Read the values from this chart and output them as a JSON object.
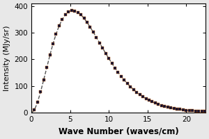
{
  "title": "",
  "xlabel": "Wave Number (waves/cm)",
  "ylabel": "Intensity (MJy/sr)",
  "xlim": [
    0,
    22.5
  ],
  "ylim": [
    0,
    410
  ],
  "xticks": [
    0,
    5,
    10,
    15,
    20
  ],
  "yticks": [
    0,
    100,
    200,
    300,
    400
  ],
  "T_cmb": 2.725,
  "figure_bg_color": "#e8e8e8",
  "axes_bg_color": "#ffffff",
  "curve_color": "#555555",
  "dot_color": "#111133",
  "dot_edge_color": "#bb5500",
  "dot_size": 5,
  "line_style": "--",
  "line_width": 1.0,
  "xlabel_fontsize": 8.5,
  "ylabel_fontsize": 8.0,
  "tick_fontsize": 7.5,
  "xlabel_fontweight": "bold",
  "ylabel_fontweight": "normal",
  "pts_step": 0.4
}
